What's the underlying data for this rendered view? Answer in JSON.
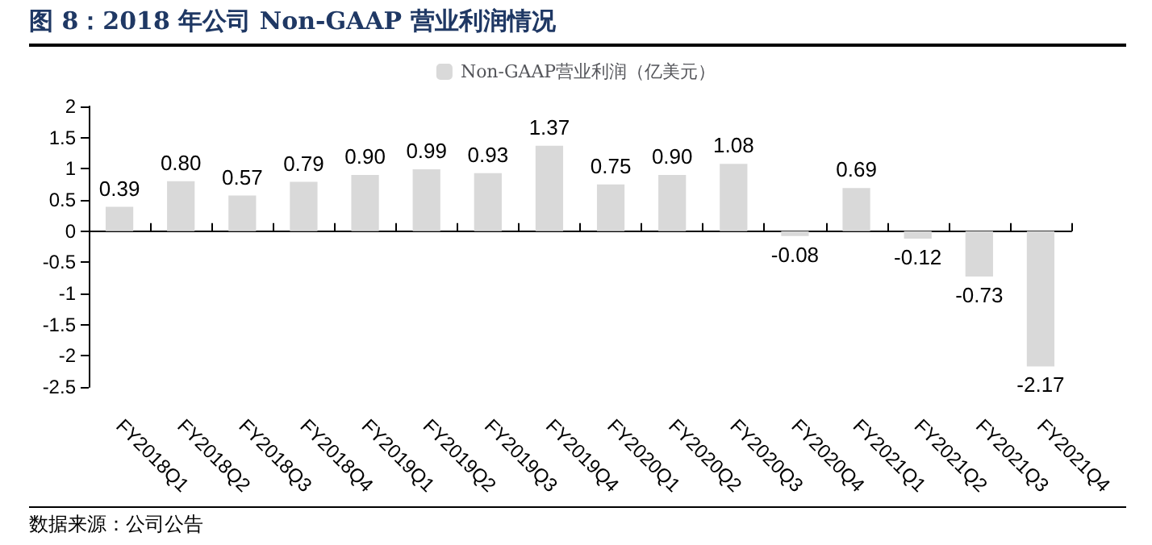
{
  "chart_data": {
    "type": "bar",
    "title": "图 8：2018 年公司 Non-GAAP 营业利润情况",
    "categories": [
      "FY2018Q1",
      "FY2018Q2",
      "FY2018Q3",
      "FY2018Q4",
      "FY2019Q1",
      "FY2019Q2",
      "FY2019Q3",
      "FY2019Q4",
      "FY2020Q1",
      "FY2020Q2",
      "FY2020Q3",
      "FY2020Q4",
      "FY2021Q1",
      "FY2021Q2",
      "FY2021Q3",
      "FY2021Q4"
    ],
    "series": [
      {
        "name": "Non-GAAP营业利润（亿美元）",
        "color": "#d9d9d9",
        "values": [
          0.39,
          0.8,
          0.57,
          0.79,
          0.9,
          0.99,
          0.93,
          1.37,
          0.75,
          0.9,
          1.08,
          -0.08,
          0.69,
          -0.12,
          -0.73,
          -2.17
        ],
        "value_labels": [
          "0.39",
          "0.80",
          "0.57",
          "0.79",
          "0.90",
          "0.99",
          "0.93",
          "1.37",
          "0.75",
          "0.90",
          "1.08",
          "-0.08",
          "0.69",
          "-0.12",
          "-0.73",
          "-2.17"
        ]
      }
    ],
    "ylim": [
      -2.5,
      2
    ],
    "yticks": [
      -2.5,
      -2,
      -1.5,
      -1,
      -0.5,
      0,
      0.5,
      1,
      1.5,
      2
    ],
    "legend": "top",
    "annotations": [
      "数据来源：公司公告"
    ]
  }
}
